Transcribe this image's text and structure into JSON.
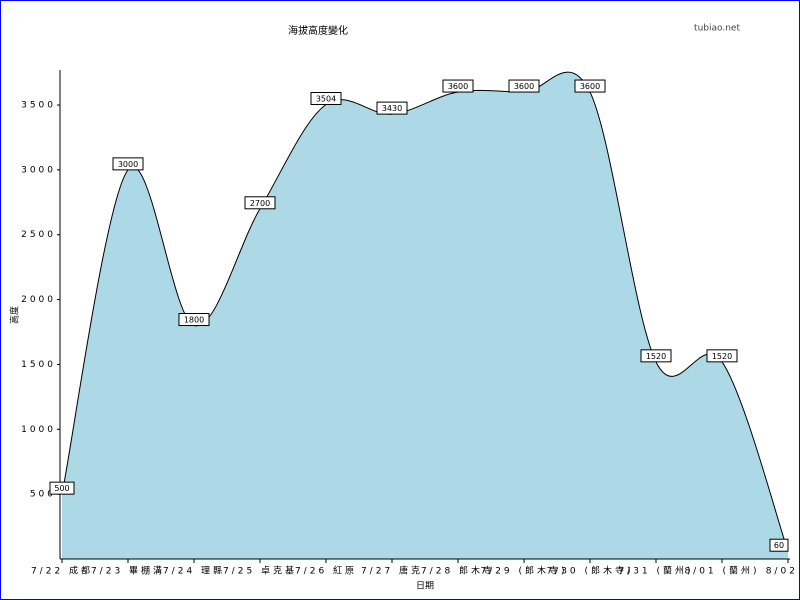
{
  "chart_data": {
    "type": "area",
    "title": "海拔高度變化",
    "watermark": "tubiao.net",
    "x_label": "日期",
    "y_label": "高度",
    "categories": [
      "7/22 成都",
      "7/23 畢棚溝",
      "7/24 理縣",
      "7/25 卓克基",
      "7/26 紅原",
      "7/27 唐克",
      "7/28 郎木寺",
      "7/29 (郎木寺)",
      "7/30 (郎木寺)",
      "7/31 (蘭州)",
      "8/01 (蘭州)",
      "8/02 ("
    ],
    "values": [
      500,
      3000,
      1800,
      2700,
      3504,
      3430,
      3600,
      3600,
      3600,
      1520,
      1520,
      60
    ],
    "color": "#add8e6",
    "ylim": [
      0,
      3770
    ],
    "yticks": [
      500,
      1000,
      1500,
      2000,
      2500,
      3000,
      3500
    ]
  }
}
